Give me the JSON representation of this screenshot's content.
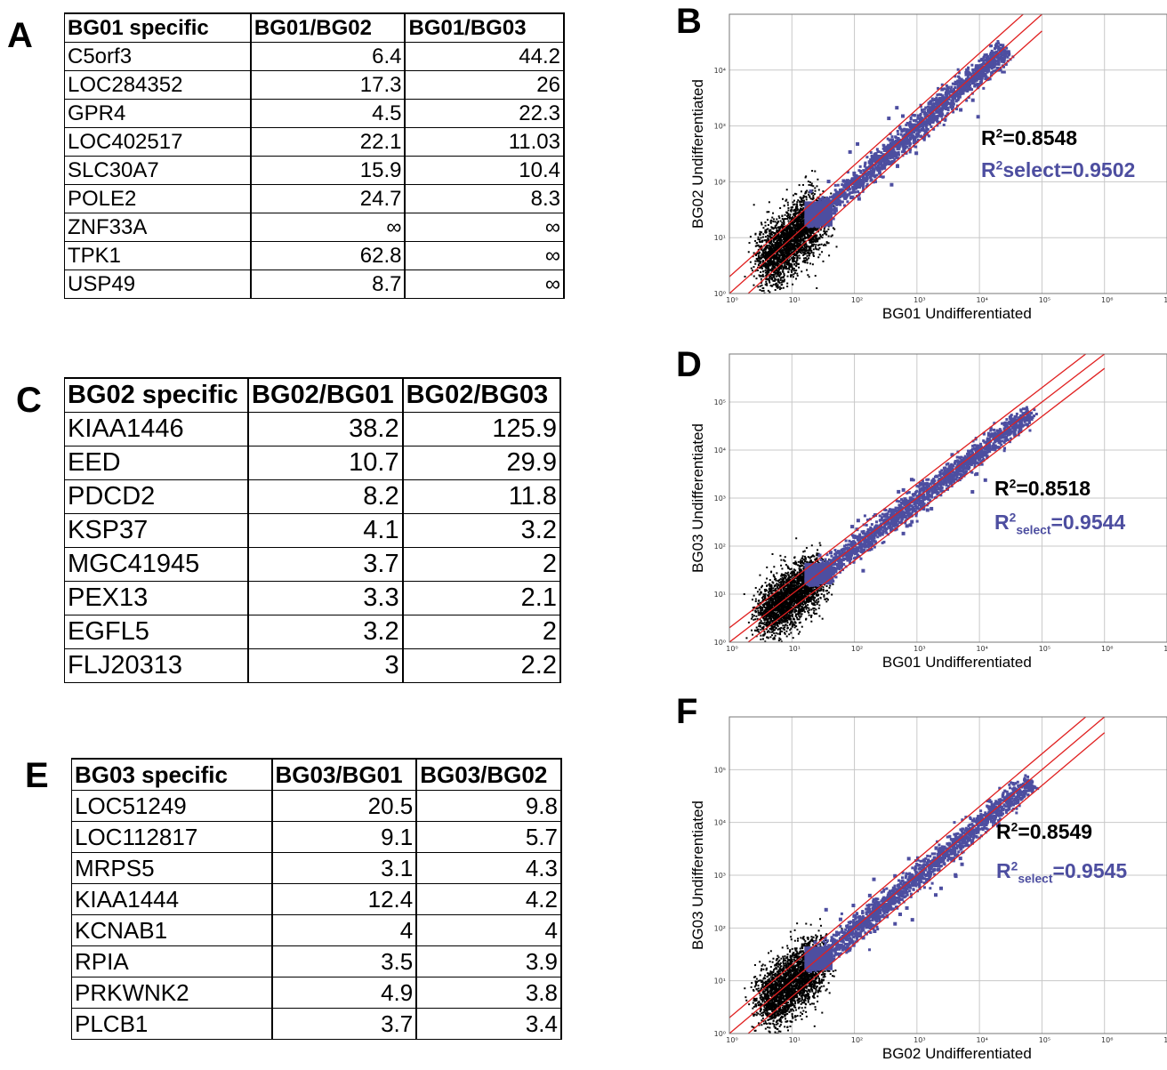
{
  "panels": {
    "A": "A",
    "B": "B",
    "C": "C",
    "D": "D",
    "E": "E",
    "F": "F"
  },
  "tables": [
    {
      "headers": [
        "BG01 specific",
        "BG01/BG02",
        "BG01/BG03"
      ],
      "rows": [
        [
          "C5orf3",
          "6.4",
          "44.2"
        ],
        [
          "LOC284352",
          "17.3",
          "26"
        ],
        [
          "GPR4",
          "4.5",
          "22.3"
        ],
        [
          "LOC402517",
          "22.1",
          "11.03"
        ],
        [
          "SLC30A7",
          "15.9",
          "10.4"
        ],
        [
          "POLE2",
          "24.7",
          "8.3"
        ],
        [
          "ZNF33A",
          "∞",
          "∞"
        ],
        [
          "TPK1",
          "62.8",
          "∞"
        ],
        [
          "USP49",
          "8.7",
          "∞"
        ]
      ]
    },
    {
      "headers": [
        "BG02 specific",
        "BG02/BG01",
        "BG02/BG03"
      ],
      "rows": [
        [
          "KIAA1446",
          "38.2",
          "125.9"
        ],
        [
          "EED",
          "10.7",
          "29.9"
        ],
        [
          "PDCD2",
          "8.2",
          "11.8"
        ],
        [
          "KSP37",
          "4.1",
          "3.2"
        ],
        [
          "MGC41945",
          "3.7",
          "2"
        ],
        [
          "PEX13",
          "3.3",
          "2.1"
        ],
        [
          "EGFL5",
          "3.2",
          "2"
        ],
        [
          "FLJ20313",
          "3",
          "2.2"
        ]
      ]
    },
    {
      "headers": [
        "BG03 specific",
        "BG03/BG01",
        "BG03/BG02"
      ],
      "rows": [
        [
          "LOC51249",
          "20.5",
          "9.8"
        ],
        [
          "LOC112817",
          "9.1",
          "5.7"
        ],
        [
          "MRPS5",
          "3.1",
          "4.3"
        ],
        [
          "KIAA1444",
          "12.4",
          "4.2"
        ],
        [
          "KCNAB1",
          "4",
          "4"
        ],
        [
          "RPIA",
          "3.5",
          "3.9"
        ],
        [
          "PRKWNK2",
          "4.9",
          "3.8"
        ],
        [
          "PLCB1",
          "3.7",
          "3.4"
        ]
      ]
    }
  ],
  "chart_data": [
    {
      "type": "scatter",
      "panel": "B",
      "xlabel": "BG01 Undifferentiated",
      "ylabel": "BG02 Undifferentiated",
      "x_scale": "log",
      "y_scale": "log",
      "xlim": [
        1,
        10000000
      ],
      "ylim": [
        1,
        100000
      ],
      "x_ticks": [
        "10⁰",
        "10¹",
        "10²",
        "10³",
        "10⁴",
        "10⁵",
        "10⁶",
        "10⁷"
      ],
      "y_ticks": [
        "10⁰",
        "10¹",
        "10²",
        "10³",
        "10⁴"
      ],
      "grid": true,
      "series": [
        {
          "color": "#000000"
        },
        {
          "color": "#4d4ea0"
        }
      ],
      "r2_prefix": "R",
      "r2_value": "=0.8548",
      "r2_select_label": "select",
      "r2_select_value": "=0.9502"
    },
    {
      "type": "scatter",
      "panel": "D",
      "xlabel": "BG01 Undifferentiated",
      "ylabel": "BG03 Undifferentiated",
      "x_scale": "log",
      "y_scale": "log",
      "xlim": [
        1,
        10000000
      ],
      "ylim": [
        1,
        1000000
      ],
      "x_ticks": [
        "10⁰",
        "10¹",
        "10²",
        "10³",
        "10⁴",
        "10⁵",
        "10⁶",
        "10⁷"
      ],
      "y_ticks": [
        "10⁰",
        "10¹",
        "10²",
        "10³",
        "10⁴",
        "10⁵"
      ],
      "grid": true,
      "series": [
        {
          "color": "#000000"
        },
        {
          "color": "#4d4ea0"
        }
      ],
      "r2_prefix": "R",
      "r2_value": "=0.8518",
      "r2_select_label": "select",
      "r2_select_value": "=0.9544"
    },
    {
      "type": "scatter",
      "panel": "F",
      "xlabel": "BG02 Undifferentiated",
      "ylabel": "BG03 Undifferentiated",
      "x_scale": "log",
      "y_scale": "log",
      "xlim": [
        1,
        10000000
      ],
      "ylim": [
        1,
        1000000
      ],
      "x_ticks": [
        "10⁰",
        "10¹",
        "10²",
        "10³",
        "10⁴",
        "10⁵",
        "10⁶",
        "10⁷"
      ],
      "y_ticks": [
        "10⁰",
        "10¹",
        "10²",
        "10³",
        "10⁴",
        "10⁵"
      ],
      "grid": true,
      "series": [
        {
          "color": "#000000"
        },
        {
          "color": "#4d4ea0"
        }
      ],
      "r2_prefix": "R",
      "r2_value": "=0.8549",
      "r2_select_label": "select",
      "r2_select_value": "=0.9545"
    }
  ]
}
